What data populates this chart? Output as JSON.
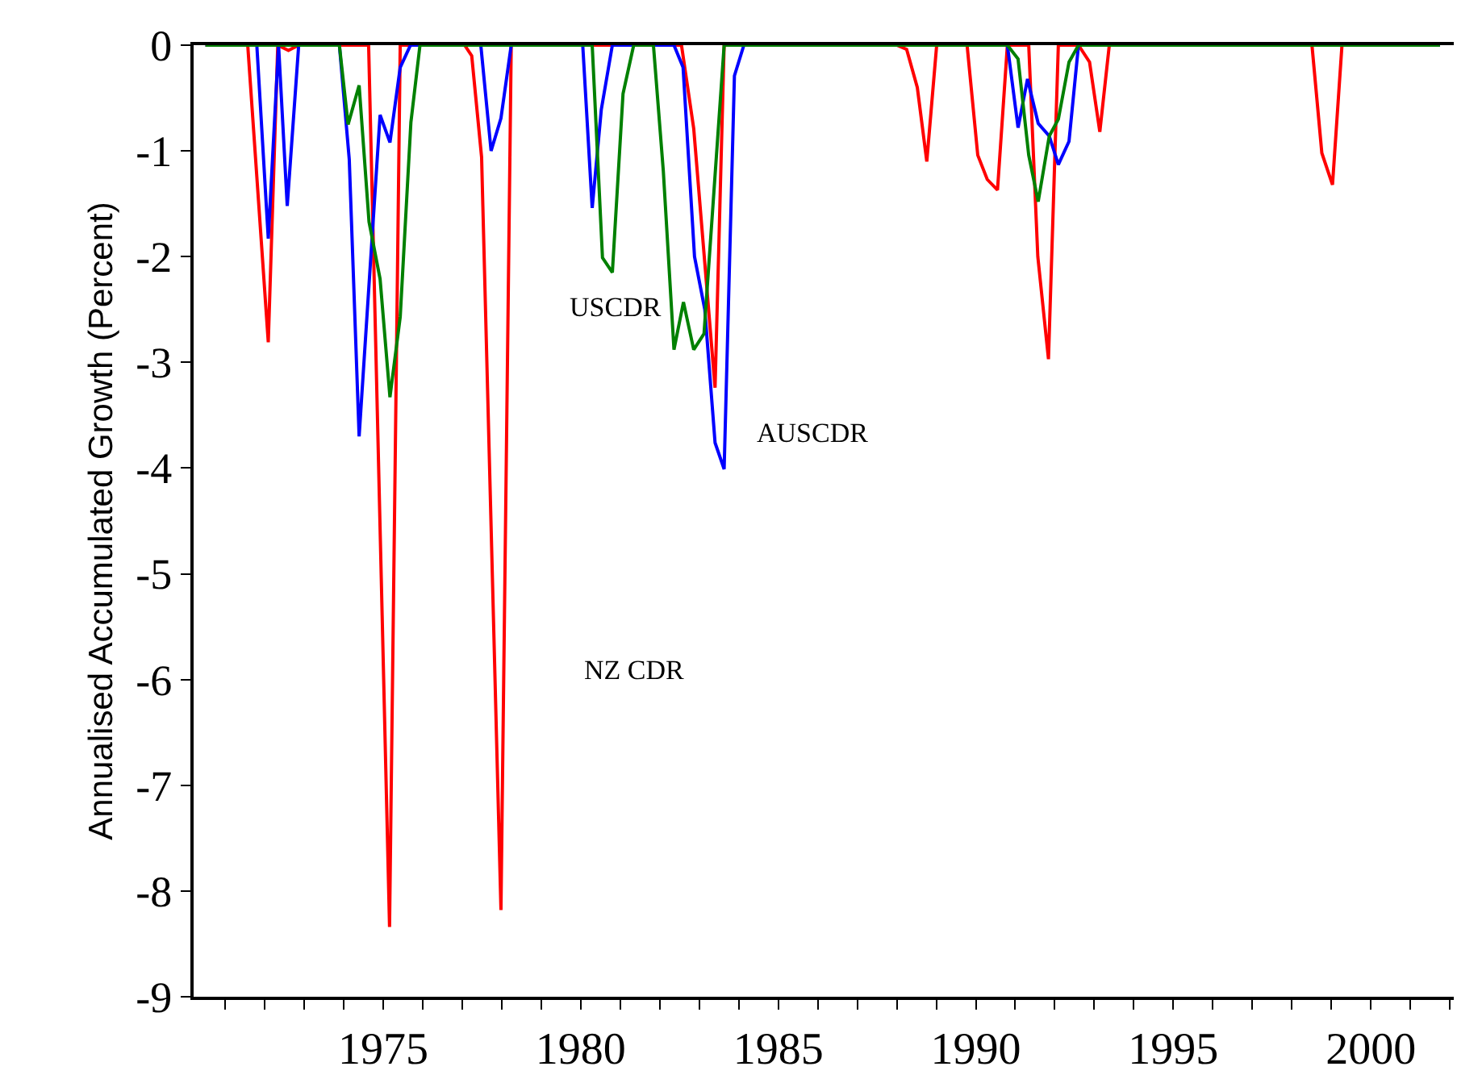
{
  "chart_data": {
    "type": "line",
    "ylabel": "Annualised Accumulated Growth (Percent)",
    "xlim": [
      1970.2,
      2002.1
    ],
    "ylim": [
      -9,
      0
    ],
    "xticks": [
      {
        "value": 1971,
        "label": null
      },
      {
        "value": 1972,
        "label": null
      },
      {
        "value": 1973,
        "label": null
      },
      {
        "value": 1974,
        "label": null
      },
      1975,
      {
        "value": 1976,
        "label": null
      },
      {
        "value": 1977,
        "label": null
      },
      {
        "value": 1978,
        "label": null
      },
      {
        "value": 1979,
        "label": null
      },
      1980,
      {
        "value": 1981,
        "label": null
      },
      {
        "value": 1982,
        "label": null
      },
      {
        "value": 1983,
        "label": null
      },
      {
        "value": 1984,
        "label": null
      },
      1985,
      {
        "value": 1986,
        "label": null
      },
      {
        "value": 1987,
        "label": null
      },
      {
        "value": 1988,
        "label": null
      },
      {
        "value": 1989,
        "label": null
      },
      1990,
      {
        "value": 1991,
        "label": null
      },
      {
        "value": 1992,
        "label": null
      },
      {
        "value": 1993,
        "label": null
      },
      {
        "value": 1994,
        "label": null
      },
      1995,
      {
        "value": 1996,
        "label": null
      },
      {
        "value": 1997,
        "label": null
      },
      {
        "value": 1998,
        "label": null
      },
      {
        "value": 1999,
        "label": null
      },
      2000,
      {
        "value": 2001,
        "label": null
      },
      {
        "value": 2002,
        "label": null
      }
    ],
    "yticks": [
      0,
      -1,
      -2,
      -3,
      -4,
      -5,
      -6,
      -7,
      -8,
      -9
    ],
    "legend": false,
    "marker": "none",
    "line_style": "solid",
    "series": [
      {
        "name": "NZ CDR",
        "color": "#ff0000",
        "x": [
          1970.5,
          1971.57,
          1972.09,
          1972.33,
          1972.6,
          1972.86,
          1974.63,
          1975.16,
          1975.43,
          1977.06,
          1977.24,
          1977.49,
          1977.98,
          1978.24,
          1982.55,
          1982.86,
          1983.4,
          1983.63,
          1988.0,
          1988.25,
          1988.52,
          1988.76,
          1989.01,
          1989.78,
          1990.05,
          1990.29,
          1990.55,
          1990.8,
          1991.34,
          1991.57,
          1991.84,
          1992.09,
          1992.6,
          1992.88,
          1993.14,
          1993.38,
          1998.51,
          1998.76,
          1999.03,
          1999.27,
          2001.75
        ],
        "values": [
          0,
          0,
          -2.81,
          0,
          -0.05,
          0,
          0,
          -8.34,
          0,
          0,
          -0.1,
          -1.06,
          -8.18,
          0,
          0,
          -0.79,
          -3.24,
          0,
          0,
          -0.04,
          -0.4,
          -1.1,
          0,
          0,
          -1.04,
          -1.27,
          -1.37,
          0,
          0,
          -2.0,
          -2.97,
          0,
          0,
          -0.16,
          -0.82,
          0,
          0,
          -1.02,
          -1.32,
          0,
          0
        ]
      },
      {
        "name": "AUSCDR",
        "color": "#0000ff",
        "x": [
          1970.5,
          1971.8,
          1972.09,
          1972.35,
          1972.57,
          1972.86,
          1973.89,
          1974.14,
          1974.39,
          1974.92,
          1975.17,
          1975.43,
          1975.69,
          1977.47,
          1977.73,
          1977.98,
          1978.24,
          1980.05,
          1980.29,
          1980.52,
          1980.8,
          1982.36,
          1982.59,
          1982.88,
          1983.14,
          1983.4,
          1983.63,
          1983.89,
          1984.13,
          1990.8,
          1991.07,
          1991.31,
          1991.58,
          1991.86,
          1992.09,
          1992.36,
          1992.6,
          2001.75
        ],
        "values": [
          0,
          0,
          -1.83,
          0,
          -1.52,
          0,
          0,
          -1.08,
          -3.7,
          -0.66,
          -0.92,
          -0.21,
          0,
          0,
          -1.0,
          -0.69,
          0,
          0,
          -1.54,
          -0.61,
          0,
          0,
          -0.21,
          -2.0,
          -2.5,
          -3.76,
          -4.01,
          -0.29,
          0,
          0,
          -0.78,
          -0.32,
          -0.74,
          -0.86,
          -1.13,
          -0.91,
          0,
          0
        ]
      },
      {
        "name": "USCDR",
        "color": "#008000",
        "x": [
          1970.5,
          1973.89,
          1974.11,
          1974.39,
          1974.64,
          1974.92,
          1975.17,
          1975.43,
          1975.7,
          1975.93,
          1980.29,
          1980.55,
          1980.8,
          1981.07,
          1981.34,
          1981.84,
          1982.09,
          1982.36,
          1982.6,
          1982.86,
          1983.12,
          1983.63,
          1990.8,
          1991.07,
          1991.34,
          1991.58,
          1991.86,
          1992.09,
          1992.36,
          1992.6,
          2001.75
        ],
        "values": [
          0,
          0,
          -0.75,
          -0.38,
          -1.67,
          -2.21,
          -3.33,
          -2.57,
          -0.73,
          0,
          0,
          -2.01,
          -2.15,
          -0.46,
          0,
          0,
          -1.19,
          -2.88,
          -2.43,
          -2.88,
          -2.73,
          0,
          0,
          -0.13,
          -1.04,
          -1.48,
          -0.86,
          -0.7,
          -0.16,
          0,
          0
        ]
      }
    ]
  }
}
